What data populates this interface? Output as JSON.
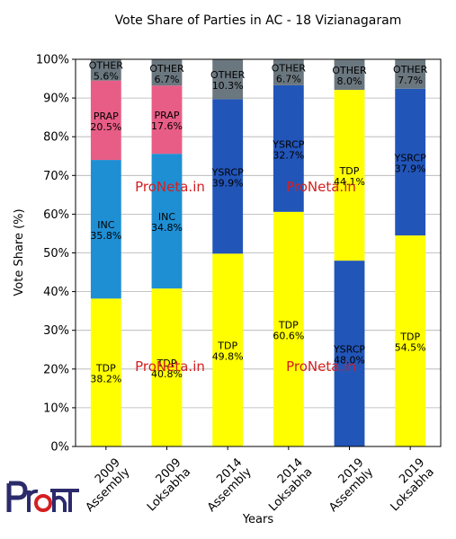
{
  "chart_data": {
    "type": "bar",
    "stacked": true,
    "title": "Vote Share of Parties in AC - 18 Vizianagaram",
    "xlabel": "Years",
    "ylabel": "Vote Share (%)",
    "ylim": [
      0,
      100
    ],
    "yticks": [
      "0%",
      "10%",
      "20%",
      "30%",
      "40%",
      "50%",
      "60%",
      "70%",
      "80%",
      "90%",
      "100%"
    ],
    "grid": true,
    "categories": [
      [
        "2009",
        "Assembly"
      ],
      [
        "2009",
        "Loksabha"
      ],
      [
        "2014",
        "Assembly"
      ],
      [
        "2014",
        "Loksabha"
      ],
      [
        "2019",
        "Assembly"
      ],
      [
        "2019",
        "Loksabha"
      ]
    ],
    "bars": [
      [
        {
          "party": "TDP",
          "value": 38.2,
          "label": "38.2%",
          "color": "#ffff00"
        },
        {
          "party": "INC",
          "value": 35.8,
          "label": "35.8%",
          "color": "#1f8fd4"
        },
        {
          "party": "PRAP",
          "value": 20.5,
          "label": "20.5%",
          "color": "#e85d86"
        },
        {
          "party": "OTHER",
          "value": 5.6,
          "label": "5.6%",
          "color": "#6b777f"
        }
      ],
      [
        {
          "party": "TDP",
          "value": 40.8,
          "label": "40.8%",
          "color": "#ffff00"
        },
        {
          "party": "INC",
          "value": 34.8,
          "label": "34.8%",
          "color": "#1f8fd4"
        },
        {
          "party": "PRAP",
          "value": 17.6,
          "label": "17.6%",
          "color": "#e85d86"
        },
        {
          "party": "OTHER",
          "value": 6.7,
          "label": "6.7%",
          "color": "#6b777f"
        }
      ],
      [
        {
          "party": "TDP",
          "value": 49.8,
          "label": "49.8%",
          "color": "#ffff00"
        },
        {
          "party": "YSRCP",
          "value": 39.9,
          "label": "39.9%",
          "color": "#2255b8"
        },
        {
          "party": "OTHER",
          "value": 10.3,
          "label": "10.3%",
          "color": "#6b777f"
        }
      ],
      [
        {
          "party": "TDP",
          "value": 60.6,
          "label": "60.6%",
          "color": "#ffff00"
        },
        {
          "party": "YSRCP",
          "value": 32.7,
          "label": "32.7%",
          "color": "#2255b8"
        },
        {
          "party": "OTHER",
          "value": 6.7,
          "label": "6.7%",
          "color": "#6b777f"
        }
      ],
      [
        {
          "party": "YSRCP",
          "value": 48.0,
          "label": "48.0%",
          "color": "#2255b8"
        },
        {
          "party": "TDP",
          "value": 44.1,
          "label": "44.1%",
          "color": "#ffff00"
        },
        {
          "party": "OTHER",
          "value": 8.0,
          "label": "8.0%",
          "color": "#6b777f"
        }
      ],
      [
        {
          "party": "TDP",
          "value": 54.5,
          "label": "54.5%",
          "color": "#ffff00"
        },
        {
          "party": "YSRCP",
          "value": 37.9,
          "label": "37.9%",
          "color": "#2255b8"
        },
        {
          "party": "OTHER",
          "value": 7.7,
          "label": "7.7%",
          "color": "#6b777f"
        }
      ]
    ],
    "watermarks": [
      "ProNeta.in",
      "ProNeta.in",
      "ProNeta.in",
      "ProNeta.in"
    ],
    "watermark_color": "#d42020"
  },
  "logo": {
    "text": "ProNeta",
    "color": "#2b2a6b",
    "accent": "#d42020"
  }
}
